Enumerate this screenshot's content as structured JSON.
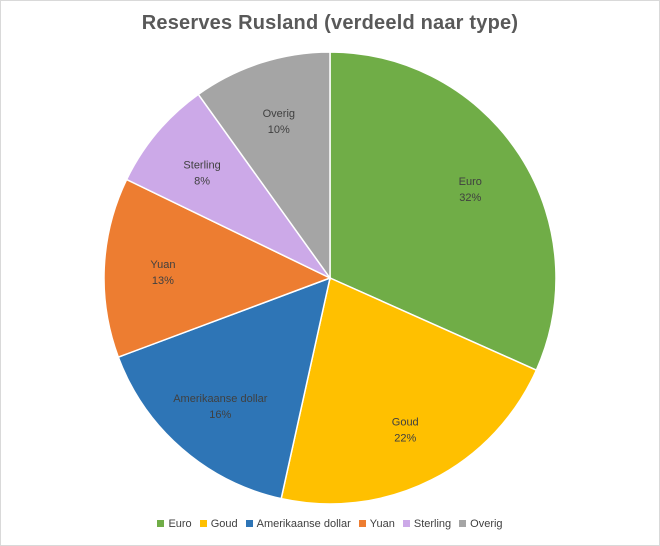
{
  "chart_data": {
    "type": "pie",
    "title": "Reserves Rusland  (verdeeld naar type)",
    "categories": [
      "Euro",
      "Goud",
      "Amerikaanse dollar",
      "Yuan",
      "Sterling",
      "Overig"
    ],
    "values": [
      32,
      22,
      16,
      13,
      8,
      10
    ],
    "value_labels": [
      "32%",
      "22%",
      "16%",
      "13%",
      "8%",
      "10%"
    ],
    "colors": [
      "#70AD47",
      "#FFC000",
      "#2E75B6",
      "#ED7D31",
      "#CCA9E8",
      "#A5A5A5"
    ],
    "start": "12 o'clock",
    "direction": "clockwise",
    "legend_position": "bottom"
  }
}
